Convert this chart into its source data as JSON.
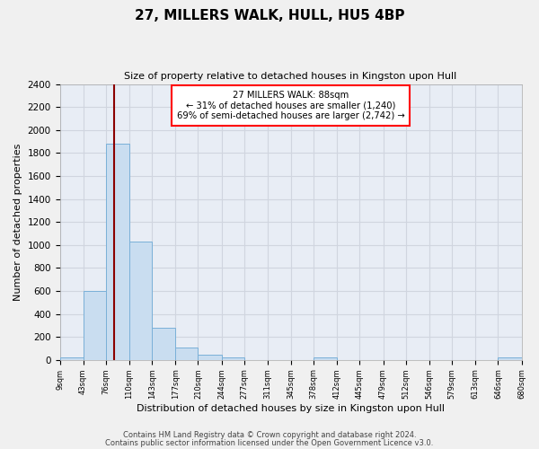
{
  "title": "27, MILLERS WALK, HULL, HU5 4BP",
  "subtitle": "Size of property relative to detached houses in Kingston upon Hull",
  "xlabel": "Distribution of detached houses by size in Kingston upon Hull",
  "ylabel": "Number of detached properties",
  "bin_edges": [
    9,
    43,
    76,
    110,
    143,
    177,
    210,
    244,
    277,
    311,
    345,
    378,
    412,
    445,
    479,
    512,
    546,
    579,
    613,
    646,
    680
  ],
  "bin_values": [
    20,
    600,
    1880,
    1030,
    280,
    110,
    45,
    20,
    0,
    0,
    0,
    20,
    0,
    0,
    0,
    0,
    0,
    0,
    0,
    20
  ],
  "bar_color": "#c9ddf0",
  "bar_edge_color": "#7ab0d8",
  "vline_x": 88,
  "vline_color": "#8b0000",
  "annotation_text": "27 MILLERS WALK: 88sqm\n← 31% of detached houses are smaller (1,240)\n69% of semi-detached houses are larger (2,742) →",
  "annotation_box_color": "white",
  "annotation_box_edge_color": "red",
  "ylim": [
    0,
    2400
  ],
  "yticks": [
    0,
    200,
    400,
    600,
    800,
    1000,
    1200,
    1400,
    1600,
    1800,
    2000,
    2200,
    2400
  ],
  "tick_labels": [
    "9sqm",
    "43sqm",
    "76sqm",
    "110sqm",
    "143sqm",
    "177sqm",
    "210sqm",
    "244sqm",
    "277sqm",
    "311sqm",
    "345sqm",
    "378sqm",
    "412sqm",
    "445sqm",
    "479sqm",
    "512sqm",
    "546sqm",
    "579sqm",
    "613sqm",
    "646sqm",
    "680sqm"
  ],
  "footer1": "Contains HM Land Registry data © Crown copyright and database right 2024.",
  "footer2": "Contains public sector information licensed under the Open Government Licence v3.0.",
  "fig_bg_color": "#f0f0f0",
  "plot_bg_color": "#e8edf5",
  "grid_color": "#d0d5df"
}
